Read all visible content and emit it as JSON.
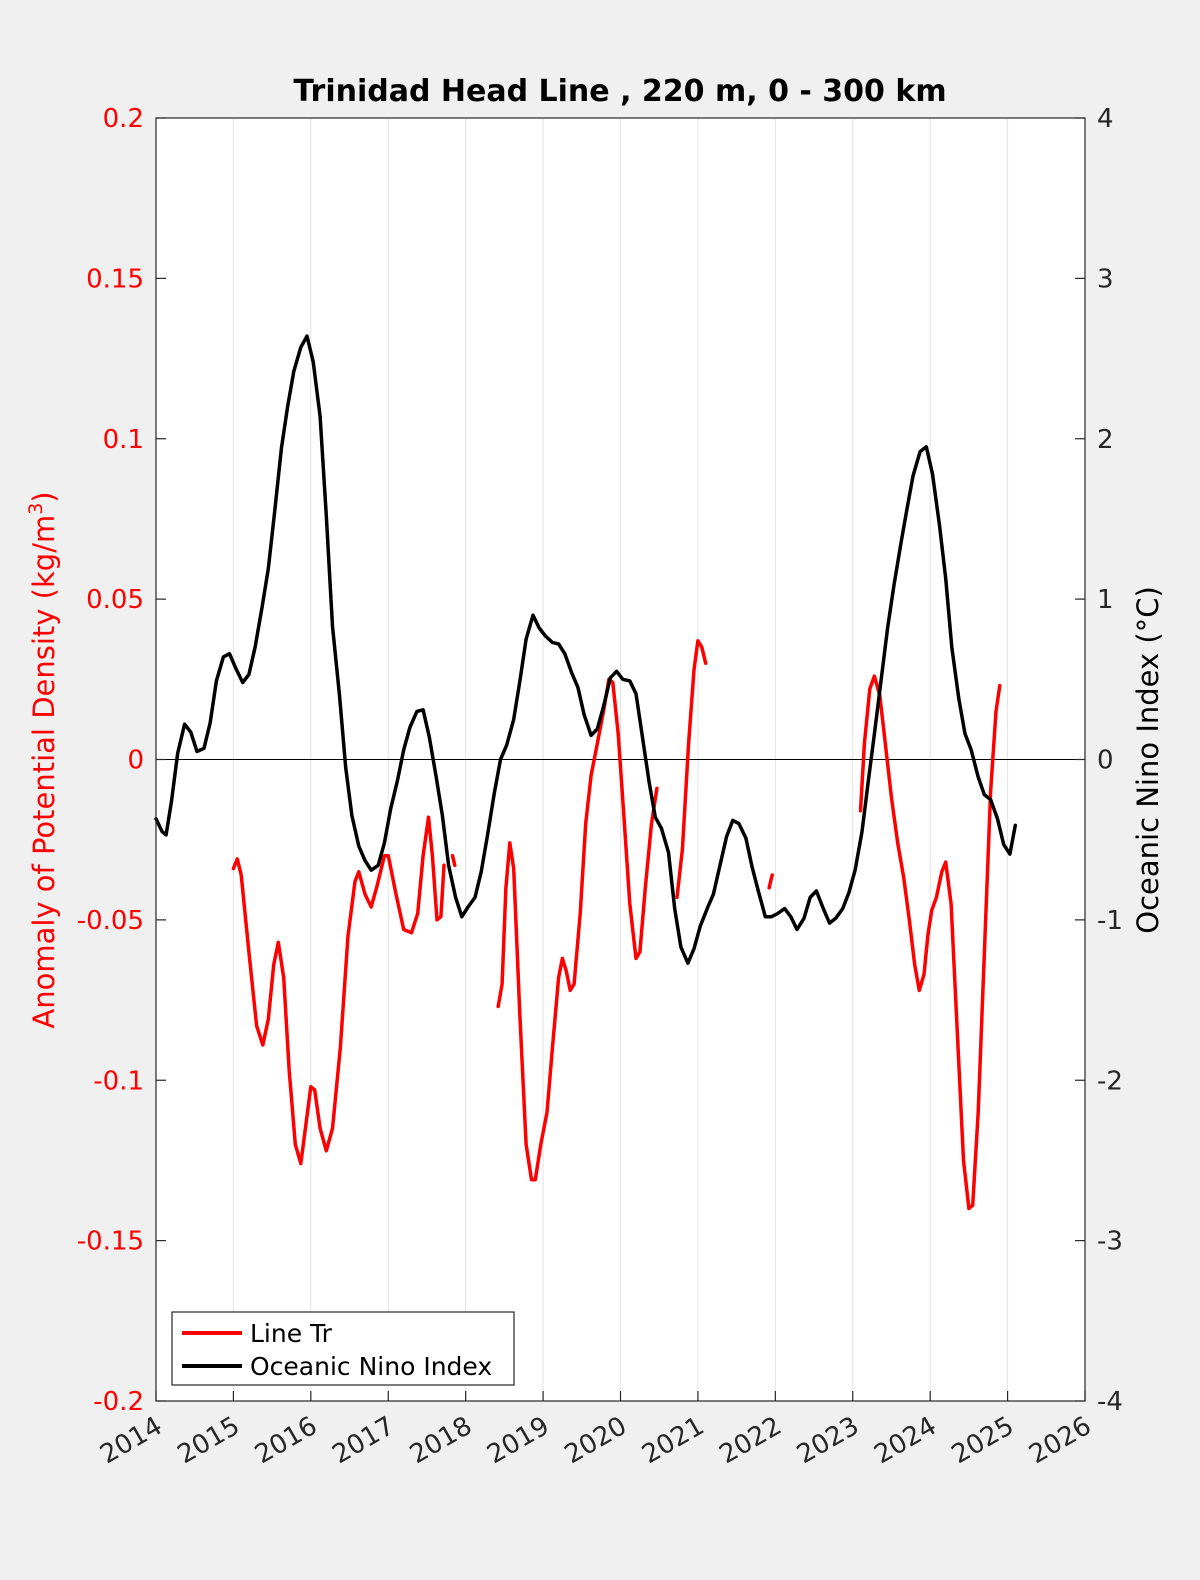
{
  "chart_data": {
    "type": "line",
    "title": "Trinidad Head Line , 220 m, 0 - 300 km",
    "xlim": [
      2014,
      2026
    ],
    "x_ticks": [
      "2014",
      "2015",
      "2016",
      "2017",
      "2018",
      "2019",
      "2020",
      "2021",
      "2022",
      "2023",
      "2024",
      "2025",
      "2026"
    ],
    "y_left": {
      "label_prefix": "Anomaly of Potential Density (kg/m",
      "label_sup": "3",
      "label_suffix": ")",
      "color": "#ff0000",
      "ylim": [
        -0.2,
        0.2
      ],
      "ticks": [
        "-0.2",
        "-0.15",
        "-0.1",
        "-0.05",
        "0",
        "0.05",
        "0.1",
        "0.15",
        "0.2"
      ]
    },
    "y_right": {
      "label": "Oceanic Nino Index (°C)",
      "color": "#000000",
      "ylim": [
        -4,
        4
      ],
      "ticks": [
        "-4",
        "-3",
        "-2",
        "-1",
        "0",
        "1",
        "2",
        "3",
        "4"
      ]
    },
    "grid": "vertical",
    "zero_line": true,
    "legend": {
      "placement": "bottom-left"
    },
    "series": [
      {
        "name": "Line Tr",
        "axis": "left",
        "color": "#ff0000",
        "segments": [
          [
            [
              2015.0,
              -0.034
            ],
            [
              2015.05,
              -0.031
            ],
            [
              2015.1,
              -0.036
            ],
            [
              2015.2,
              -0.06
            ],
            [
              2015.3,
              -0.083
            ],
            [
              2015.38,
              -0.089
            ],
            [
              2015.45,
              -0.081
            ],
            [
              2015.52,
              -0.064
            ],
            [
              2015.58,
              -0.057
            ],
            [
              2015.65,
              -0.068
            ],
            [
              2015.72,
              -0.097
            ],
            [
              2015.8,
              -0.12
            ],
            [
              2015.87,
              -0.126
            ],
            [
              2015.93,
              -0.115
            ],
            [
              2016.0,
              -0.102
            ],
            [
              2016.05,
              -0.103
            ],
            [
              2016.12,
              -0.115
            ],
            [
              2016.2,
              -0.122
            ],
            [
              2016.28,
              -0.115
            ],
            [
              2016.38,
              -0.09
            ],
            [
              2016.48,
              -0.055
            ],
            [
              2016.57,
              -0.038
            ],
            [
              2016.62,
              -0.035
            ],
            [
              2016.7,
              -0.042
            ],
            [
              2016.78,
              -0.046
            ],
            [
              2016.86,
              -0.039
            ],
            [
              2016.95,
              -0.03
            ],
            [
              2017.0,
              -0.03
            ],
            [
              2017.1,
              -0.042
            ],
            [
              2017.2,
              -0.053
            ],
            [
              2017.3,
              -0.054
            ],
            [
              2017.38,
              -0.048
            ],
            [
              2017.45,
              -0.03
            ],
            [
              2017.52,
              -0.018
            ],
            [
              2017.57,
              -0.03
            ],
            [
              2017.63,
              -0.05
            ],
            [
              2017.68,
              -0.049
            ],
            [
              2017.72,
              -0.033
            ]
          ],
          [
            [
              2017.83,
              -0.03
            ],
            [
              2017.86,
              -0.033
            ]
          ],
          [
            [
              2018.42,
              -0.077
            ],
            [
              2018.47,
              -0.07
            ],
            [
              2018.52,
              -0.04
            ],
            [
              2018.57,
              -0.026
            ],
            [
              2018.62,
              -0.034
            ],
            [
              2018.7,
              -0.08
            ],
            [
              2018.78,
              -0.12
            ],
            [
              2018.85,
              -0.131
            ],
            [
              2018.9,
              -0.131
            ],
            [
              2018.97,
              -0.12
            ],
            [
              2019.05,
              -0.11
            ],
            [
              2019.12,
              -0.09
            ],
            [
              2019.2,
              -0.068
            ],
            [
              2019.25,
              -0.062
            ],
            [
              2019.3,
              -0.066
            ],
            [
              2019.35,
              -0.072
            ],
            [
              2019.4,
              -0.07
            ],
            [
              2019.48,
              -0.048
            ],
            [
              2019.55,
              -0.02
            ],
            [
              2019.62,
              -0.005
            ],
            [
              2019.7,
              0.005
            ],
            [
              2019.78,
              0.015
            ],
            [
              2019.85,
              0.025
            ],
            [
              2019.9,
              0.024
            ],
            [
              2019.97,
              0.008
            ],
            [
              2020.05,
              -0.02
            ],
            [
              2020.12,
              -0.045
            ],
            [
              2020.2,
              -0.062
            ],
            [
              2020.25,
              -0.06
            ],
            [
              2020.32,
              -0.04
            ],
            [
              2020.4,
              -0.02
            ],
            [
              2020.47,
              -0.009
            ]
          ],
          [
            [
              2020.73,
              -0.043
            ],
            [
              2020.8,
              -0.028
            ],
            [
              2020.88,
              0.005
            ],
            [
              2020.95,
              0.028
            ],
            [
              2021.0,
              0.037
            ],
            [
              2021.05,
              0.035
            ],
            [
              2021.1,
              0.03
            ]
          ],
          [
            [
              2021.92,
              -0.04
            ],
            [
              2021.96,
              -0.036
            ]
          ],
          [
            [
              2023.1,
              -0.016
            ],
            [
              2023.15,
              0.005
            ],
            [
              2023.22,
              0.022
            ],
            [
              2023.28,
              0.026
            ],
            [
              2023.35,
              0.02
            ],
            [
              2023.42,
              0.005
            ],
            [
              2023.5,
              -0.012
            ],
            [
              2023.58,
              -0.026
            ],
            [
              2023.66,
              -0.037
            ],
            [
              2023.73,
              -0.05
            ],
            [
              2023.8,
              -0.064
            ],
            [
              2023.86,
              -0.072
            ],
            [
              2023.92,
              -0.067
            ],
            [
              2023.97,
              -0.055
            ],
            [
              2024.02,
              -0.047
            ],
            [
              2024.08,
              -0.043
            ],
            [
              2024.15,
              -0.035
            ],
            [
              2024.2,
              -0.032
            ],
            [
              2024.27,
              -0.045
            ],
            [
              2024.35,
              -0.085
            ],
            [
              2024.43,
              -0.125
            ],
            [
              2024.5,
              -0.14
            ],
            [
              2024.55,
              -0.139
            ],
            [
              2024.62,
              -0.11
            ],
            [
              2024.7,
              -0.06
            ],
            [
              2024.78,
              -0.01
            ],
            [
              2024.85,
              0.015
            ],
            [
              2024.9,
              0.023
            ]
          ]
        ]
      },
      {
        "name": "Oceanic Nino Index",
        "axis": "right",
        "color": "#000000",
        "segments": [
          [
            [
              2014.0,
              -0.37
            ],
            [
              2014.08,
              -0.45
            ],
            [
              2014.13,
              -0.47
            ],
            [
              2014.2,
              -0.26
            ],
            [
              2014.28,
              0.04
            ],
            [
              2014.37,
              0.22
            ],
            [
              2014.45,
              0.17
            ],
            [
              2014.53,
              0.05
            ],
            [
              2014.62,
              0.07
            ],
            [
              2014.7,
              0.23
            ],
            [
              2014.78,
              0.49
            ],
            [
              2014.87,
              0.64
            ],
            [
              2014.95,
              0.66
            ],
            [
              2015.03,
              0.57
            ],
            [
              2015.12,
              0.48
            ],
            [
              2015.2,
              0.53
            ],
            [
              2015.28,
              0.7
            ],
            [
              2015.37,
              0.95
            ],
            [
              2015.45,
              1.19
            ],
            [
              2015.53,
              1.53
            ],
            [
              2015.62,
              1.94
            ],
            [
              2015.7,
              2.2
            ],
            [
              2015.78,
              2.42
            ],
            [
              2015.87,
              2.57
            ],
            [
              2015.95,
              2.64
            ],
            [
              2016.03,
              2.48
            ],
            [
              2016.12,
              2.14
            ],
            [
              2016.2,
              1.52
            ],
            [
              2016.28,
              0.83
            ],
            [
              2016.37,
              0.4
            ],
            [
              2016.45,
              -0.05
            ],
            [
              2016.53,
              -0.35
            ],
            [
              2016.62,
              -0.54
            ],
            [
              2016.7,
              -0.63
            ],
            [
              2016.78,
              -0.69
            ],
            [
              2016.87,
              -0.66
            ],
            [
              2016.95,
              -0.52
            ],
            [
              2017.03,
              -0.31
            ],
            [
              2017.12,
              -0.13
            ],
            [
              2017.2,
              0.06
            ],
            [
              2017.28,
              0.2
            ],
            [
              2017.37,
              0.3
            ],
            [
              2017.45,
              0.31
            ],
            [
              2017.53,
              0.14
            ],
            [
              2017.62,
              -0.11
            ],
            [
              2017.7,
              -0.35
            ],
            [
              2017.78,
              -0.66
            ],
            [
              2017.87,
              -0.86
            ],
            [
              2017.95,
              -0.98
            ],
            [
              2018.03,
              -0.92
            ],
            [
              2018.12,
              -0.86
            ],
            [
              2018.2,
              -0.7
            ],
            [
              2018.28,
              -0.48
            ],
            [
              2018.37,
              -0.21
            ],
            [
              2018.45,
              0.0
            ],
            [
              2018.53,
              0.09
            ],
            [
              2018.62,
              0.25
            ],
            [
              2018.7,
              0.49
            ],
            [
              2018.78,
              0.75
            ],
            [
              2018.87,
              0.9
            ],
            [
              2018.95,
              0.82
            ],
            [
              2019.03,
              0.77
            ],
            [
              2019.12,
              0.73
            ],
            [
              2019.2,
              0.72
            ],
            [
              2019.28,
              0.66
            ],
            [
              2019.37,
              0.54
            ],
            [
              2019.45,
              0.45
            ],
            [
              2019.53,
              0.28
            ],
            [
              2019.62,
              0.15
            ],
            [
              2019.7,
              0.19
            ],
            [
              2019.78,
              0.33
            ],
            [
              2019.87,
              0.51
            ],
            [
              2019.95,
              0.55
            ],
            [
              2020.03,
              0.5
            ],
            [
              2020.12,
              0.49
            ],
            [
              2020.2,
              0.41
            ],
            [
              2020.28,
              0.15
            ],
            [
              2020.37,
              -0.14
            ],
            [
              2020.45,
              -0.36
            ],
            [
              2020.53,
              -0.43
            ],
            [
              2020.62,
              -0.58
            ],
            [
              2020.7,
              -0.93
            ],
            [
              2020.78,
              -1.17
            ],
            [
              2020.87,
              -1.27
            ],
            [
              2020.95,
              -1.18
            ],
            [
              2021.03,
              -1.04
            ],
            [
              2021.12,
              -0.93
            ],
            [
              2021.2,
              -0.84
            ],
            [
              2021.28,
              -0.67
            ],
            [
              2021.37,
              -0.48
            ],
            [
              2021.45,
              -0.38
            ],
            [
              2021.53,
              -0.4
            ],
            [
              2021.62,
              -0.49
            ],
            [
              2021.7,
              -0.67
            ],
            [
              2021.78,
              -0.82
            ],
            [
              2021.87,
              -0.98
            ],
            [
              2021.95,
              -0.98
            ],
            [
              2022.03,
              -0.96
            ],
            [
              2022.12,
              -0.93
            ],
            [
              2022.2,
              -0.98
            ],
            [
              2022.28,
              -1.06
            ],
            [
              2022.37,
              -0.99
            ],
            [
              2022.45,
              -0.86
            ],
            [
              2022.53,
              -0.82
            ],
            [
              2022.62,
              -0.93
            ],
            [
              2022.7,
              -1.02
            ],
            [
              2022.78,
              -0.99
            ],
            [
              2022.87,
              -0.93
            ],
            [
              2022.95,
              -0.83
            ],
            [
              2023.03,
              -0.69
            ],
            [
              2023.12,
              -0.45
            ],
            [
              2023.2,
              -0.14
            ],
            [
              2023.28,
              0.16
            ],
            [
              2023.37,
              0.51
            ],
            [
              2023.45,
              0.82
            ],
            [
              2023.53,
              1.08
            ],
            [
              2023.62,
              1.34
            ],
            [
              2023.7,
              1.56
            ],
            [
              2023.78,
              1.77
            ],
            [
              2023.87,
              1.92
            ],
            [
              2023.95,
              1.95
            ],
            [
              2024.03,
              1.78
            ],
            [
              2024.12,
              1.46
            ],
            [
              2024.2,
              1.13
            ],
            [
              2024.28,
              0.7
            ],
            [
              2024.37,
              0.38
            ],
            [
              2024.45,
              0.16
            ],
            [
              2024.53,
              0.06
            ],
            [
              2024.62,
              -0.11
            ],
            [
              2024.7,
              -0.22
            ],
            [
              2024.78,
              -0.25
            ],
            [
              2024.87,
              -0.37
            ],
            [
              2024.95,
              -0.53
            ],
            [
              2025.03,
              -0.59
            ],
            [
              2025.1,
              -0.41
            ]
          ]
        ]
      }
    ]
  }
}
